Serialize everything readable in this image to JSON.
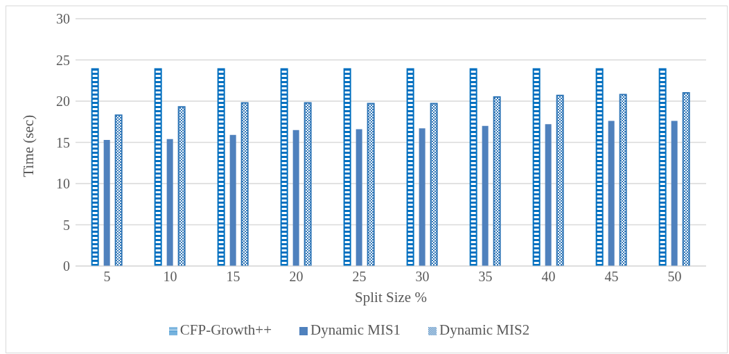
{
  "chart_data": {
    "type": "bar",
    "xlabel": "Split Size %",
    "ylabel": "Time (sec)",
    "categories": [
      "5",
      "10",
      "15",
      "20",
      "25",
      "30",
      "35",
      "40",
      "45",
      "50"
    ],
    "series": [
      {
        "name": "CFP-Growth++",
        "color": "#0070c0",
        "values": [
          23.9,
          23.9,
          23.9,
          23.9,
          23.9,
          23.9,
          23.9,
          23.9,
          23.9,
          23.9
        ]
      },
      {
        "name": "Dynamic MIS1",
        "color": "#4f81bd",
        "values": [
          15.3,
          15.4,
          15.9,
          16.5,
          16.6,
          16.7,
          17.0,
          17.2,
          17.6,
          17.6
        ]
      },
      {
        "name": "Dynamic MIS2",
        "color": "#2e75b6",
        "values": [
          18.3,
          19.3,
          19.8,
          19.8,
          19.7,
          19.7,
          20.5,
          20.7,
          20.8,
          21.0
        ]
      }
    ],
    "ylim": [
      0,
      30
    ],
    "yticks": [
      0,
      5,
      10,
      15,
      20,
      25,
      30
    ],
    "grid": "y",
    "legend": "bottom"
  }
}
